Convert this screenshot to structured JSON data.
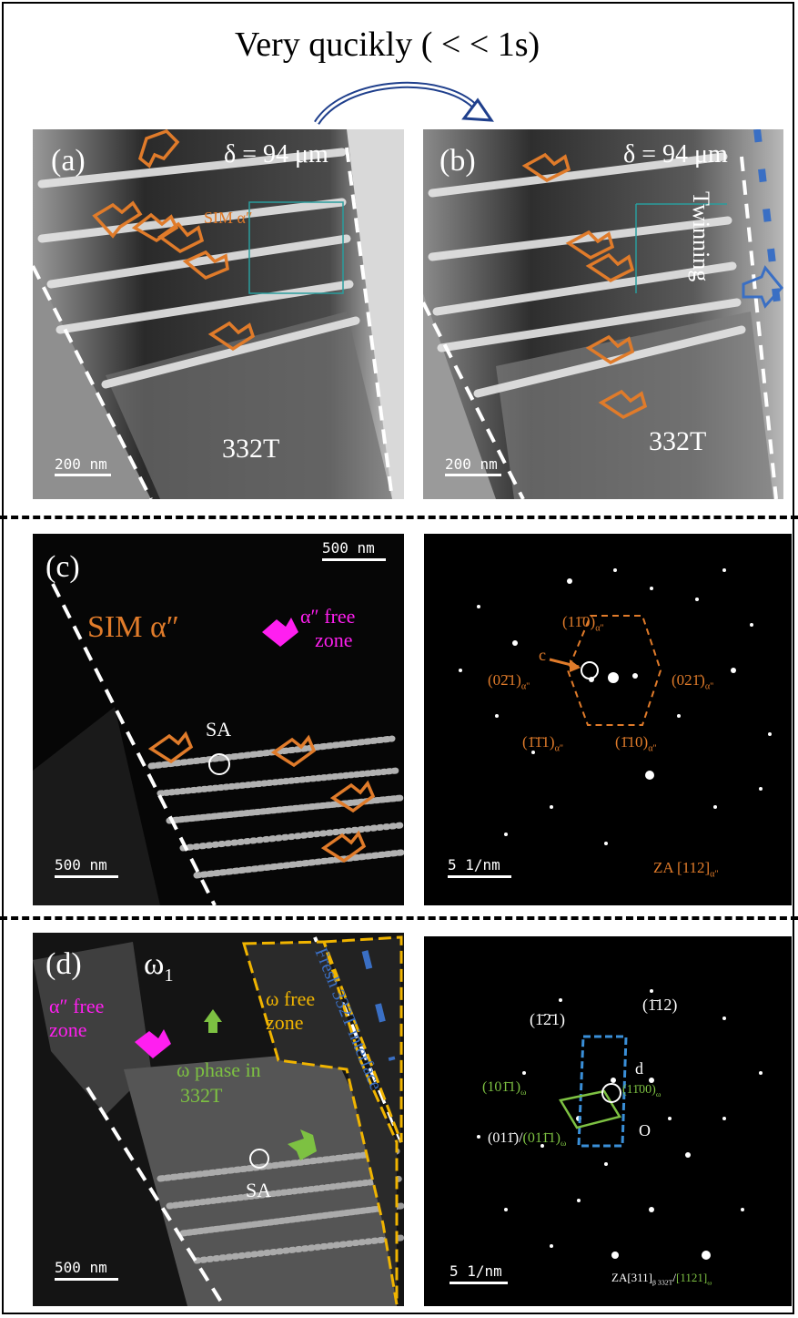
{
  "title": "Very qucikly ( < < 1s)",
  "panel_a": {
    "label": "(a)",
    "delta": "δ = 94 μm",
    "sim_label": "SIM α″",
    "phase_label": "332T",
    "scale": "200 nm"
  },
  "panel_b": {
    "label": "(b)",
    "delta": "δ = 94 μm",
    "twinning": "Twinning",
    "phase_label": "332T",
    "scale": "200 nm"
  },
  "panel_c": {
    "label": "(c)",
    "sim_label": "SIM α″",
    "free_zone_1": "α″ free",
    "free_zone_2": "zone",
    "sa_label": "SA",
    "scale_top": "500 nm",
    "scale_bottom": "500 nm"
  },
  "panel_c_diffraction": {
    "c_label": "c",
    "spot_1_main": "(11̄0)",
    "spot_2_main": "(02̄1)",
    "spot_3_main": "(021̄)",
    "spot_4_main": "(1̄1̄1)",
    "spot_5_main": "(1̄10)",
    "spot_sub": "α\"",
    "scale": "5 1/nm",
    "zone_axis_main": "ZA [112]",
    "zone_axis_sub": "α\""
  },
  "panel_d": {
    "label": "(d)",
    "omega_label": "ω",
    "omega_sub": "1",
    "free_zone_1": "α″ free",
    "free_zone_2": "zone",
    "omega_free_1": "ω free",
    "omega_free_2": "zone",
    "omega_phase_1": "ω phase in",
    "omega_phase_2": "332T",
    "interface": "Fresh 332T interface",
    "sa_label": "SA",
    "scale": "500 nm"
  },
  "panel_d_diffraction": {
    "spot_121": "(1̄2̄1)",
    "spot_112": "(1̄12)",
    "d_label": "d",
    "o_label": "O",
    "spot_1011_main": "(101̄1)",
    "spot_1100_main": "(11̄00)",
    "omega_sub": "ω",
    "spot_011_white": "(011̄)/",
    "spot_0111_green": "(011̄1)",
    "scale": "5 1/nm",
    "zone_axis_white_main": "ZA[311]",
    "zone_axis_white_sub": "β 332T",
    "zone_axis_slash": "/",
    "zone_axis_green_main": "[1121]",
    "zone_axis_green_sub": "ω"
  },
  "colors": {
    "orange": "#e07b2a",
    "magenta": "#ff1ff0",
    "green": "#7dc142",
    "blue": "#3a6fc4",
    "yellow": "#f0b400",
    "teal": "#2a9d9d"
  }
}
